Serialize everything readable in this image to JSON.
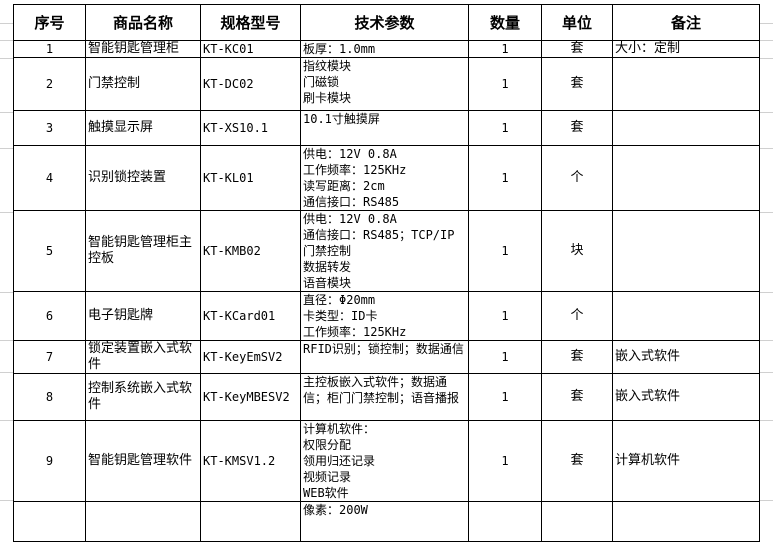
{
  "headers": [
    "序号",
    "商品名称",
    "规格型号",
    "技术参数",
    "数量",
    "单位",
    "备注"
  ],
  "rows": [
    {
      "no": "1",
      "name": "智能钥匙管理柜",
      "model": "KT-KC01",
      "spec": "板厚：1.0mm",
      "qty": "1",
      "unit": "套",
      "note": "大小：定制"
    },
    {
      "no": "2",
      "name": "门禁控制",
      "model": "KT-DC02",
      "spec": "指纹模块\n门磁锁\n刷卡模块",
      "qty": "1",
      "unit": "套",
      "note": ""
    },
    {
      "no": "3",
      "name": "触摸显示屏",
      "model": "KT-XS10.1",
      "spec": "10.1寸触摸屏",
      "qty": "1",
      "unit": "套",
      "note": ""
    },
    {
      "no": "4",
      "name": "识别锁控装置",
      "model": "KT-KL01",
      "spec": "供电：12V 0.8A\n工作频率：125KHz\n读写距离：2cm\n通信接口：RS485",
      "qty": "1",
      "unit": "个",
      "note": ""
    },
    {
      "no": "5",
      "name": "智能钥匙管理柜主控板",
      "model": "KT-KMB02",
      "spec": "供电：12V 0.8A\n通信接口：RS485；TCP/IP\n门禁控制\n数据转发\n语音模块",
      "qty": "1",
      "unit": "块",
      "note": ""
    },
    {
      "no": "6",
      "name": "电子钥匙牌",
      "model": "KT-KCard01",
      "spec": "直径：Φ20mm\n卡类型：ID卡\n工作频率：125KHz",
      "qty": "1",
      "unit": "个",
      "note": ""
    },
    {
      "no": "7",
      "name": "锁定装置嵌入式软件",
      "model": "KT-KeyEmSV2",
      "spec": "RFID识别；锁控制；数据通信",
      "qty": "1",
      "unit": "套",
      "note": "嵌入式软件"
    },
    {
      "no": "8",
      "name": "控制系统嵌入式软件",
      "model": "KT-KeyMBESV2",
      "spec": "主控板嵌入式软件；数据通信；柜门门禁控制；语音播报",
      "qty": "1",
      "unit": "套",
      "note": "嵌入式软件"
    },
    {
      "no": "9",
      "name": "智能钥匙管理软件",
      "model": "KT-KMSV1.2",
      "spec": "计算机软件：\n     权限分配\n     领用归还记录\n     视频记录\n    WEB软件",
      "qty": "1",
      "unit": "套",
      "note": "计算机软件"
    },
    {
      "no": "",
      "name": "",
      "model": "",
      "spec": "像素：200W",
      "qty": "",
      "unit": "",
      "note": ""
    }
  ]
}
